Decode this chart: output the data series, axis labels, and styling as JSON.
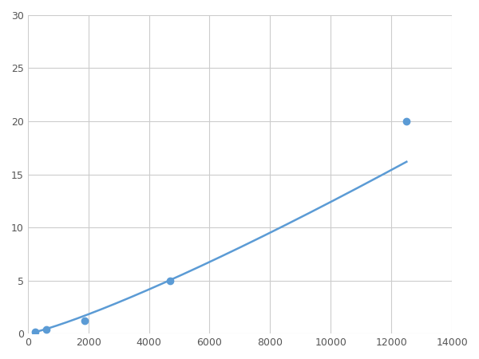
{
  "x_data": [
    250,
    625,
    1875,
    4688,
    12500
  ],
  "y_data": [
    0.2,
    0.4,
    1.2,
    5.0,
    20.0
  ],
  "line_color": "#5B9BD5",
  "marker_color": "#5B9BD5",
  "marker_size": 6,
  "line_width": 1.8,
  "xlim": [
    0,
    14000
  ],
  "ylim": [
    0,
    30
  ],
  "xticks": [
    0,
    2000,
    4000,
    6000,
    8000,
    10000,
    12000,
    14000
  ],
  "yticks": [
    0,
    5,
    10,
    15,
    20,
    25,
    30
  ],
  "grid_color": "#CCCCCC",
  "background_color": "#FFFFFF",
  "figsize": [
    6.0,
    4.5
  ],
  "dpi": 100
}
